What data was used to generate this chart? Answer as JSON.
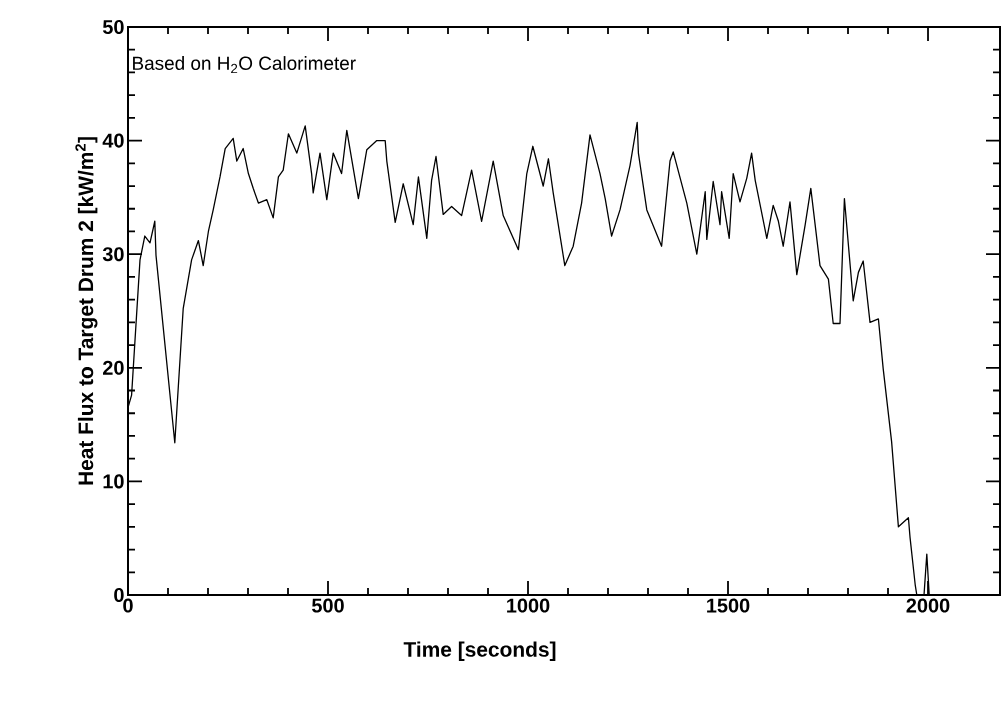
{
  "chart_data": {
    "type": "line",
    "xlabel": "Time [seconds]",
    "ylabel": "Heat Flux to Target Drum 2 [kW/m$^{2}$]",
    "annotations": [
      "Based on H$_{2}$O Calorimeter"
    ],
    "xlim": [
      0,
      2180
    ],
    "ylim": [
      0,
      50
    ],
    "xticks": [
      0,
      500,
      1000,
      1500,
      2000
    ],
    "yticks": [
      0,
      10,
      20,
      30,
      40,
      50
    ],
    "grid": false,
    "marker": "none",
    "line_style": "solid",
    "series": [
      {
        "color": "#000000",
        "x": [
          0,
          9,
          30,
          42,
          55,
          67,
          70,
          117,
          138,
          159,
          176,
          188,
          201,
          213,
          230,
          243,
          263,
          272,
          288,
          301,
          313,
          326,
          347,
          363,
          376,
          388,
          401,
          422,
          443,
          459,
          463,
          480,
          497,
          513,
          534,
          547,
          576,
          597,
          622,
          643,
          647,
          668,
          688,
          713,
          726,
          747,
          759,
          770,
          788,
          809,
          834,
          859,
          884,
          913,
          938,
          976,
          997,
          1012,
          1038,
          1051,
          1063,
          1092,
          1113,
          1134,
          1155,
          1180,
          1193,
          1209,
          1230,
          1255,
          1273,
          1276,
          1297,
          1334,
          1355,
          1363,
          1397,
          1422,
          1443,
          1447,
          1463,
          1480,
          1484,
          1503,
          1513,
          1530,
          1547,
          1559,
          1568,
          1597,
          1613,
          1626,
          1638,
          1655,
          1672,
          1693,
          1707,
          1730,
          1751,
          1763,
          1780,
          1791,
          1813,
          1826,
          1838,
          1855,
          1876,
          1888,
          1909,
          1926,
          1951,
          1955,
          1968,
          1972,
          1990,
          1997,
          2003
        ],
        "values": [
          16.5,
          17.6,
          29.5,
          31.6,
          31,
          32.9,
          29.9,
          13.4,
          25.2,
          29.5,
          31.2,
          29,
          32,
          33.9,
          36.8,
          39.3,
          40.2,
          38.2,
          39.3,
          37.1,
          35.8,
          34.5,
          34.8,
          33.2,
          36.8,
          37.4,
          40.6,
          38.9,
          41.3,
          37.1,
          35.4,
          38.9,
          34.8,
          38.9,
          37.1,
          40.9,
          34.9,
          39.2,
          40,
          40,
          38.2,
          32.8,
          36.2,
          32.6,
          36.8,
          31.4,
          36.5,
          38.6,
          33.5,
          34.2,
          33.4,
          37.4,
          32.9,
          38.2,
          33.4,
          30.4,
          37.1,
          39.5,
          36,
          38.4,
          35.4,
          29,
          30.7,
          34.5,
          40.5,
          37.1,
          34.9,
          31.6,
          33.9,
          37.8,
          41.6,
          38.9,
          33.9,
          30.7,
          38.2,
          39,
          34.5,
          30,
          35.5,
          31.3,
          36.4,
          32.6,
          35.5,
          31.4,
          37.1,
          34.6,
          36.7,
          38.9,
          36.5,
          31.4,
          34.3,
          32.9,
          30.7,
          34.6,
          28.2,
          32.6,
          35.8,
          29,
          27.8,
          23.9,
          23.9,
          34.9,
          25.9,
          28.4,
          29.4,
          24,
          24.3,
          19.9,
          13.5,
          6,
          6.8,
          5.1,
          0.9,
          0,
          0,
          3.6,
          0
        ]
      }
    ]
  }
}
